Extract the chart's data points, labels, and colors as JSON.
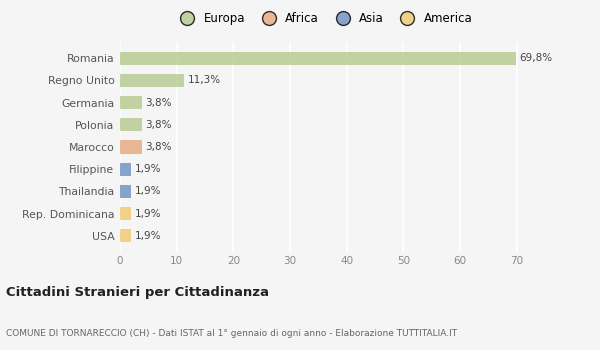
{
  "categories": [
    "Romania",
    "Regno Unito",
    "Germania",
    "Polonia",
    "Marocco",
    "Filippine",
    "Thailandia",
    "Rep. Dominicana",
    "USA"
  ],
  "values": [
    69.8,
    11.3,
    3.8,
    3.8,
    3.8,
    1.9,
    1.9,
    1.9,
    1.9
  ],
  "labels": [
    "69,8%",
    "11,3%",
    "3,8%",
    "3,8%",
    "3,8%",
    "1,9%",
    "1,9%",
    "1,9%",
    "1,9%"
  ],
  "colors": [
    "#b5c98e",
    "#b5c98e",
    "#b5c98e",
    "#b5c98e",
    "#e8a87c",
    "#6b8fbf",
    "#6b8fbf",
    "#f0c96e",
    "#f0c96e"
  ],
  "legend_labels": [
    "Europa",
    "Africa",
    "Asia",
    "America"
  ],
  "legend_colors": [
    "#b5c98e",
    "#e8a87c",
    "#6b8fbf",
    "#f0c96e"
  ],
  "title": "Cittadini Stranieri per Cittadinanza",
  "subtitle": "COMUNE DI TORNARECCIO (CH) - Dati ISTAT al 1° gennaio di ogni anno - Elaborazione TUTTITALIA.IT",
  "xlim": [
    0,
    72
  ],
  "xticks": [
    0,
    10,
    20,
    30,
    40,
    50,
    60,
    70
  ],
  "bg_color": "#f5f5f5",
  "grid_color": "#ffffff",
  "bar_alpha": 0.8,
  "bar_height": 0.6
}
